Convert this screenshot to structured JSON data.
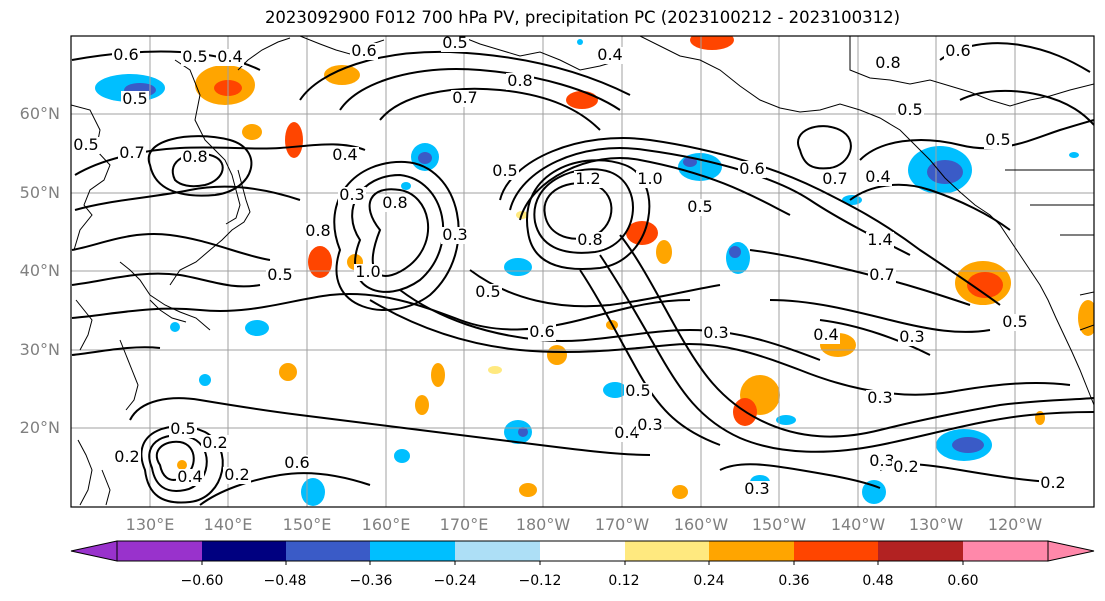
{
  "title": "2023092900 F012 700 hPa PV, precipitation PC (2023100212 - 2023100312)",
  "map": {
    "lat_labels": [
      "60°N",
      "50°N",
      "40°N",
      "30°N",
      "20°N"
    ],
    "lon_labels": [
      "130°E",
      "140°E",
      "150°E",
      "160°E",
      "170°E",
      "180°W",
      "170°W",
      "160°W",
      "150°W",
      "140°W",
      "130°W",
      "120°W"
    ],
    "contour_labels": [
      "0.6",
      "0.4",
      "0.5",
      "0.6",
      "0.5",
      "0.4",
      "0.5",
      "0.8",
      "0.8",
      "0.6",
      "0.5",
      "0.7",
      "0.5",
      "0.7",
      "0.8",
      "0.4",
      "0.5",
      "0.5",
      "0.6",
      "1.2",
      "1.0",
      "0.7",
      "0.5",
      "0.3",
      "0.8",
      "0.4",
      "0.8",
      "0.3",
      "1.4",
      "0.8",
      "0.5",
      "0.5",
      "0.7",
      "1.0",
      "0.5",
      "0.3",
      "0.6",
      "0.4",
      "0.3",
      "0.3",
      "0.5",
      "0.4",
      "0.3",
      "0.5",
      "0.3",
      "0.2",
      "0.2",
      "0.4",
      "0.6",
      "0.2",
      "0.2",
      "0.2",
      "0.3"
    ]
  },
  "colorbar": {
    "ticks": [
      "−0.60",
      "−0.48",
      "−0.36",
      "−0.24",
      "−0.12",
      "0.12",
      "0.24",
      "0.36",
      "0.48",
      "0.60"
    ],
    "colors": [
      "#9932CC",
      "#000080",
      "#3A5BC7",
      "#00BFFF",
      "#ADDFF6",
      "#FFFFFF",
      "#FFE97F",
      "#FFA500",
      "#FF4500",
      "#B22222",
      "#FF88AA"
    ]
  },
  "colors": {
    "contour": "#000000",
    "grid": "#a0a0a0",
    "axis_label": "#808080"
  }
}
